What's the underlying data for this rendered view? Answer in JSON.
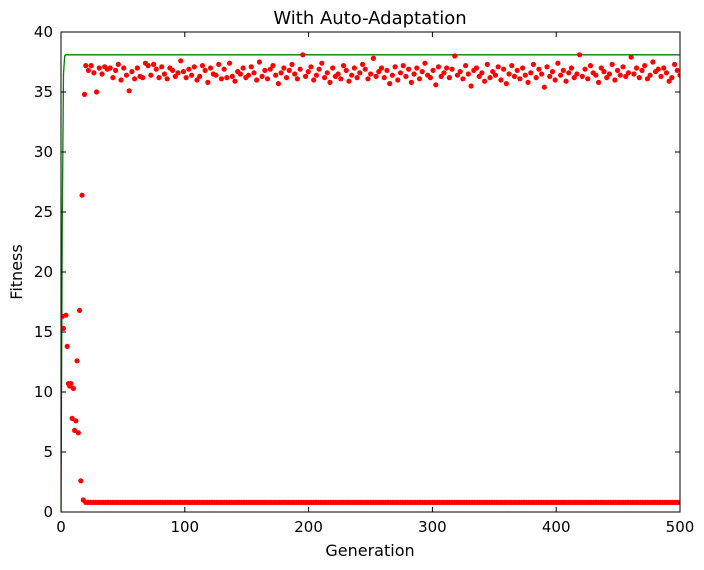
{
  "chart_data": {
    "type": "scatter",
    "title": "With Auto-Adaptation",
    "xlabel": "Generation",
    "ylabel": "Fitness",
    "xlim": [
      0,
      500
    ],
    "ylim": [
      0,
      40
    ],
    "xticks": [
      0,
      100,
      200,
      300,
      400,
      500
    ],
    "yticks": [
      0,
      5,
      10,
      15,
      20,
      25,
      30,
      35,
      40
    ],
    "grid": false,
    "colors": {
      "best": "#007f00",
      "population": "#ff0000",
      "axes": "#000000"
    },
    "series": [
      {
        "kind": "line",
        "color": "#007f00",
        "x": [
          0,
          1,
          2,
          3,
          4,
          500
        ],
        "y": [
          0,
          24,
          36.5,
          38.0,
          38.1,
          38.1
        ]
      },
      {
        "kind": "scatter",
        "color": "#ff0000",
        "early": {
          "x": [
            1,
            2,
            4,
            5,
            6,
            7,
            8,
            9,
            10,
            11,
            12,
            13,
            14,
            15,
            16,
            17,
            18,
            19
          ],
          "y": [
            16.3,
            15.3,
            16.4,
            13.8,
            10.7,
            10.5,
            10.7,
            7.8,
            10.3,
            6.8,
            7.6,
            12.6,
            6.6,
            16.8,
            2.6,
            26.4,
            1.0,
            34.8
          ]
        },
        "low_band": {
          "x_start": 20,
          "x_end": 500,
          "value": 0.8
        },
        "high_band": {
          "x_start": 20,
          "x_end": 500,
          "values": [
            37.2,
            36.8,
            37.2,
            36.6,
            35.0,
            37.0,
            36.5,
            37.1,
            36.9,
            37.0,
            36.2,
            36.8,
            37.3,
            36.0,
            37.0,
            36.4,
            35.1,
            36.7,
            36.1,
            37.0,
            36.3,
            36.2,
            37.4,
            37.2,
            36.4,
            37.3,
            36.9,
            36.2,
            37.1,
            36.5,
            36.1,
            37.0,
            36.8,
            36.3,
            36.6,
            37.6,
            36.7,
            36.2,
            36.9,
            36.4,
            37.1,
            36.0,
            36.3,
            37.2,
            36.8,
            35.8,
            37.0,
            36.5,
            36.4,
            37.3,
            36.1,
            36.9,
            36.2,
            37.4,
            36.3,
            35.9,
            36.7,
            36.5,
            37.0,
            36.2,
            36.4,
            37.1,
            36.6,
            36.0,
            37.5,
            36.3,
            36.8,
            36.1,
            36.9,
            37.2,
            36.4,
            35.7,
            36.6,
            37.0,
            36.2,
            36.8,
            37.3,
            36.5,
            36.1,
            36.9,
            38.1,
            36.3,
            36.7,
            37.1,
            36.0,
            36.4,
            36.9,
            37.4,
            36.2,
            36.6,
            35.8,
            37.0,
            36.3,
            36.5,
            36.1,
            37.2,
            36.8,
            35.9,
            36.4,
            37.0,
            36.2,
            36.6,
            37.3,
            36.9,
            36.1,
            36.5,
            37.8,
            36.3,
            36.7,
            37.0,
            36.2,
            36.8,
            35.7,
            36.4,
            37.1,
            36.0,
            36.6,
            37.2,
            36.3,
            36.9,
            35.8,
            36.5,
            37.0,
            36.1,
            36.7,
            37.4,
            36.4,
            36.2,
            36.8,
            35.6,
            37.1,
            36.3,
            36.6,
            37.0,
            36.2,
            36.9,
            38.0,
            36.4,
            36.7,
            36.1,
            37.2,
            36.5,
            35.5,
            36.8,
            37.0,
            36.3,
            36.6,
            35.9,
            37.3,
            36.2,
            36.7,
            36.4,
            37.1,
            36.0,
            36.9,
            35.7,
            36.5,
            37.2,
            36.3,
            36.8,
            36.1,
            37.0,
            36.4,
            35.8,
            36.6,
            37.3,
            36.2,
            36.9,
            36.5,
            35.4,
            37.1,
            36.3,
            36.7,
            36.0,
            37.4,
            36.4,
            36.8,
            35.9,
            36.6,
            37.0,
            36.2,
            36.5,
            38.1,
            36.3,
            36.9,
            36.1,
            37.2,
            36.6,
            36.4,
            35.8,
            37.0,
            36.7,
            36.2,
            36.5,
            37.3,
            36.0,
            36.8,
            36.4,
            37.1,
            36.3,
            36.6,
            37.9,
            36.5,
            37.0,
            36.2,
            36.8,
            37.2,
            36.1,
            36.4,
            37.5,
            36.7,
            36.9,
            36.3,
            37.0,
            36.6,
            35.9,
            36.2,
            37.3,
            36.8,
            36.4
          ]
        }
      }
    ]
  }
}
